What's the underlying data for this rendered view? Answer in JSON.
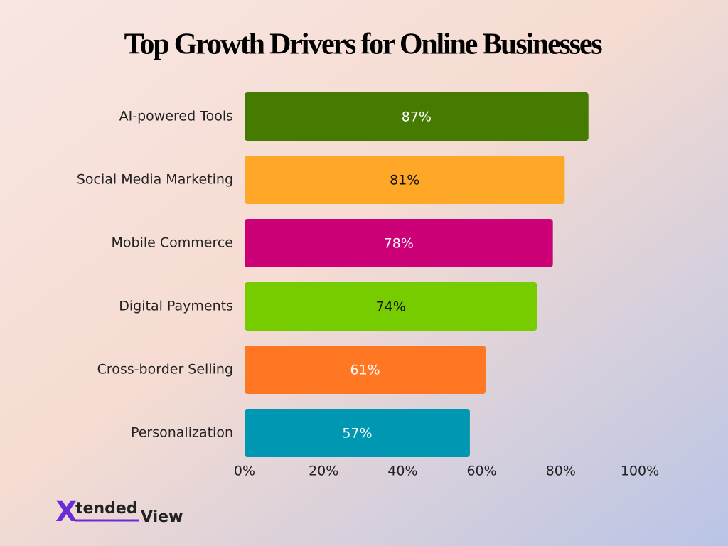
{
  "chart_data": {
    "type": "barh",
    "title": "Top Growth Drivers for Online Businesses",
    "categories": [
      "AI-powered Tools",
      "Social Media Marketing",
      "Mobile Commerce",
      "Digital Payments",
      "Cross-border Selling",
      "Personalization"
    ],
    "values": [
      87,
      81,
      78,
      74,
      61,
      57
    ],
    "value_labels": [
      "87%",
      "81%",
      "78%",
      "74%",
      "61%",
      "57%"
    ],
    "colors": [
      "#457b00",
      "#ffa726",
      "#cc0077",
      "#77cc00",
      "#ff7722",
      "#0097b2"
    ],
    "value_label_colors": [
      "#ffffff",
      "#111111",
      "#ffffff",
      "#111111",
      "#ffffff",
      "#ffffff"
    ],
    "xlim": [
      0,
      100
    ],
    "xticks": [
      {
        "value": 0,
        "label": "0%"
      },
      {
        "value": 20,
        "label": "20%"
      },
      {
        "value": 40,
        "label": "40%"
      },
      {
        "value": 60,
        "label": "60%"
      },
      {
        "value": 80,
        "label": "80%"
      },
      {
        "value": 100,
        "label": "100%"
      }
    ],
    "grid": false
  },
  "logo": [
    "X",
    "tended",
    "View"
  ]
}
